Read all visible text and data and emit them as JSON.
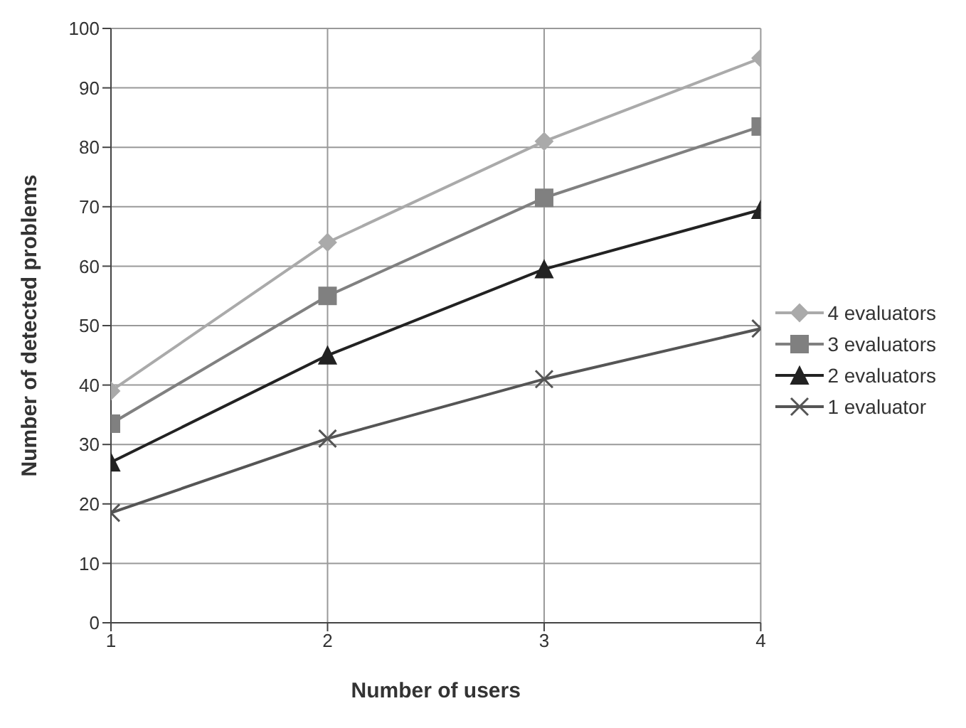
{
  "chart_data": {
    "type": "line",
    "xlabel": "Number of users",
    "ylabel": "Number of detected problems",
    "x": [
      1,
      2,
      3,
      4
    ],
    "series": [
      {
        "name": "4 evaluators",
        "color": "#aaaaaa",
        "marker": "diamond",
        "values": [
          39,
          64,
          81,
          95
        ]
      },
      {
        "name": "3 evaluators",
        "color": "#808080",
        "marker": "square",
        "values": [
          33.5,
          55,
          71.5,
          83.5
        ]
      },
      {
        "name": "2 evaluators",
        "color": "#222222",
        "marker": "triangle",
        "values": [
          27,
          45,
          59.5,
          69.5
        ]
      },
      {
        "name": "1 evaluator",
        "color": "#555555",
        "marker": "cross",
        "values": [
          18.5,
          31,
          41,
          49.5
        ]
      }
    ],
    "xlim": [
      1,
      4
    ],
    "xticks": [
      1,
      2,
      3,
      4
    ],
    "ylim": [
      0,
      100
    ],
    "yticks": [
      0,
      10,
      20,
      30,
      40,
      50,
      60,
      70,
      80,
      90,
      100
    ],
    "grid": true,
    "legend": "right",
    "line_style": "solid"
  }
}
